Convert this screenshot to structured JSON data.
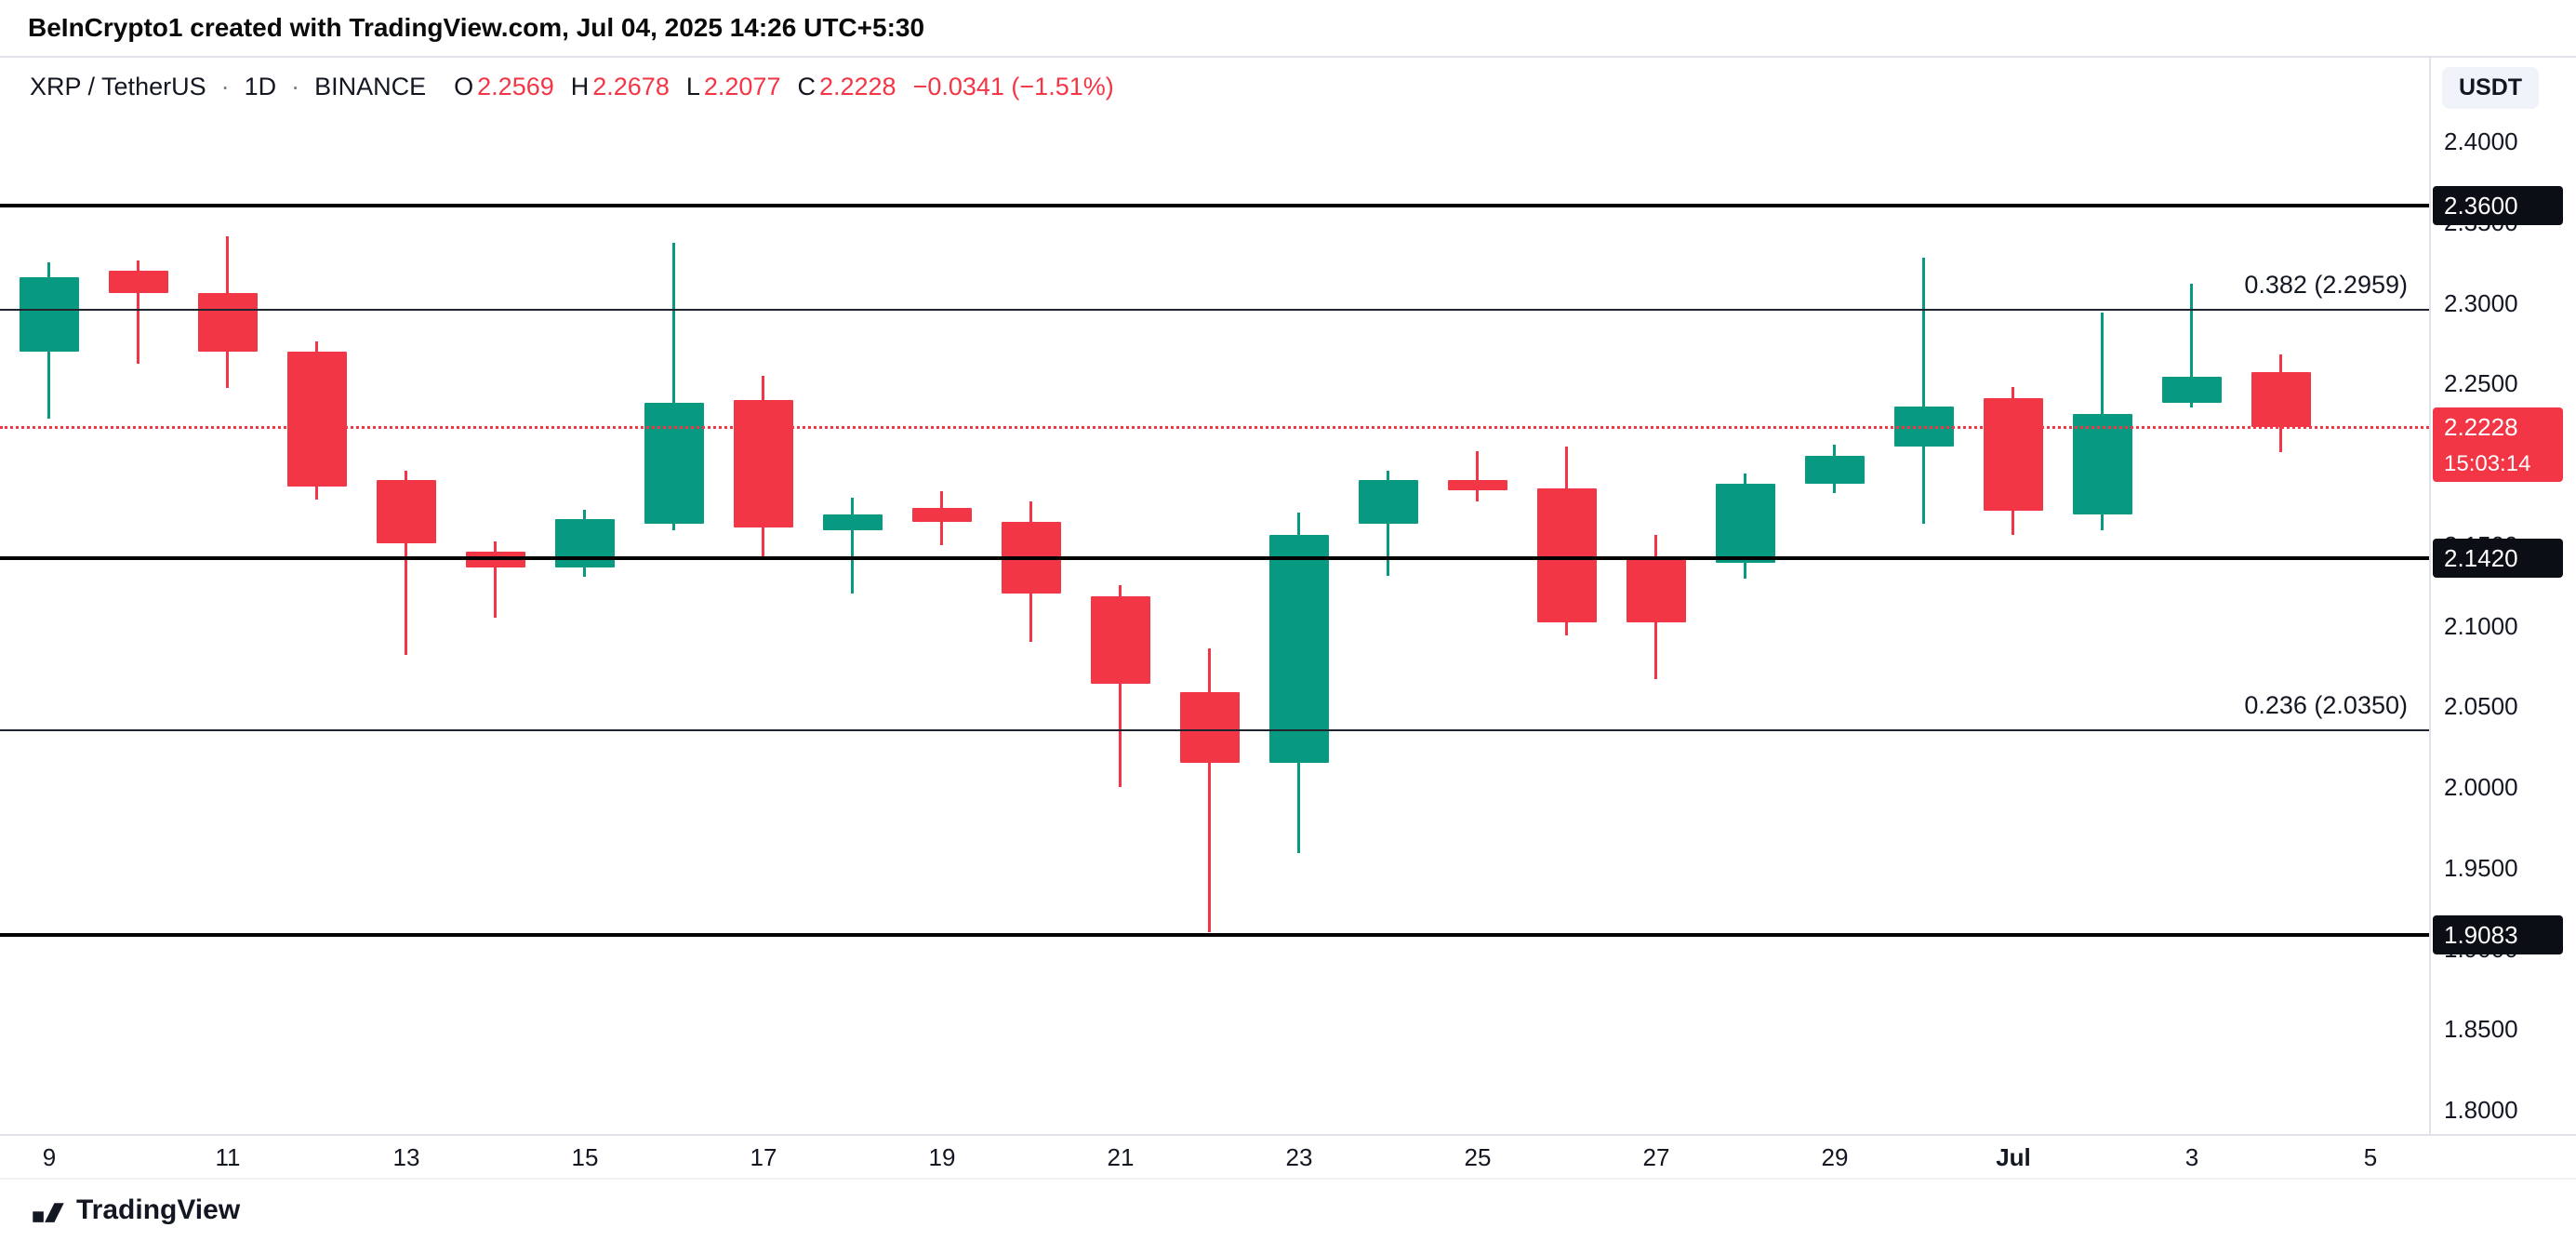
{
  "attribution": {
    "text": "BeInCrypto1 created with TradingView.com, Jul 04, 2025 14:26 UTC+5:30"
  },
  "header": {
    "symbol": "XRP / TetherUS",
    "separator": "·",
    "timeframe": "1D",
    "exchange": "BINANCE",
    "ohlc": {
      "o_label": "O",
      "o": "2.2569",
      "h_label": "H",
      "h": "2.2678",
      "l_label": "L",
      "l": "2.2077",
      "c_label": "C",
      "c": "2.2228",
      "change": "−0.0341 (−1.51%)"
    },
    "currency_button": "USDT"
  },
  "footer": {
    "logo_text": "TradingView"
  },
  "chart_data": {
    "type": "candlestick",
    "title": "XRP / TetherUS · 1D · BINANCE",
    "interval": "1D",
    "exchange": "BINANCE",
    "axis_range_price": [
      1.785,
      2.452
    ],
    "grid": false,
    "colors": {
      "up": "#089981",
      "down": "#f23645",
      "sr_line": "#000000",
      "fib_line": "#20242e",
      "current": "#f23645"
    },
    "candles": [
      {
        "date": "Jun 9",
        "o": 2.27,
        "h": 2.325,
        "l": 2.228,
        "c": 2.316
      },
      {
        "date": "Jun 10",
        "o": 2.32,
        "h": 2.326,
        "l": 2.262,
        "c": 2.306
      },
      {
        "date": "Jun 11",
        "o": 2.306,
        "h": 2.341,
        "l": 2.247,
        "c": 2.27
      },
      {
        "date": "Jun 12",
        "o": 2.27,
        "h": 2.276,
        "l": 2.178,
        "c": 2.186
      },
      {
        "date": "Jun 13",
        "o": 2.19,
        "h": 2.196,
        "l": 2.082,
        "c": 2.151
      },
      {
        "date": "Jun 14",
        "o": 2.146,
        "h": 2.152,
        "l": 2.105,
        "c": 2.136
      },
      {
        "date": "Jun 15",
        "o": 2.136,
        "h": 2.172,
        "l": 2.13,
        "c": 2.166
      },
      {
        "date": "Jun 16",
        "o": 2.163,
        "h": 2.337,
        "l": 2.159,
        "c": 2.238
      },
      {
        "date": "Jun 17",
        "o": 2.24,
        "h": 2.255,
        "l": 2.141,
        "c": 2.161
      },
      {
        "date": "Jun 18",
        "o": 2.159,
        "h": 2.179,
        "l": 2.12,
        "c": 2.169
      },
      {
        "date": "Jun 19",
        "o": 2.173,
        "h": 2.183,
        "l": 2.15,
        "c": 2.164
      },
      {
        "date": "Jun 20",
        "o": 2.164,
        "h": 2.177,
        "l": 2.09,
        "c": 2.12
      },
      {
        "date": "Jun 21",
        "o": 2.118,
        "h": 2.125,
        "l": 2.0,
        "c": 2.064
      },
      {
        "date": "Jun 22",
        "o": 2.059,
        "h": 2.086,
        "l": 1.91,
        "c": 2.015
      },
      {
        "date": "Jun 23",
        "o": 2.015,
        "h": 2.17,
        "l": 1.959,
        "c": 2.156
      },
      {
        "date": "Jun 24",
        "o": 2.163,
        "h": 2.196,
        "l": 2.131,
        "c": 2.19
      },
      {
        "date": "Jun 25",
        "o": 2.19,
        "h": 2.208,
        "l": 2.177,
        "c": 2.184
      },
      {
        "date": "Jun 26",
        "o": 2.185,
        "h": 2.211,
        "l": 2.094,
        "c": 2.102
      },
      {
        "date": "Jun 27",
        "o": 2.141,
        "h": 2.156,
        "l": 2.067,
        "c": 2.102
      },
      {
        "date": "Jun 28",
        "o": 2.139,
        "h": 2.194,
        "l": 2.129,
        "c": 2.188
      },
      {
        "date": "Jun 29",
        "o": 2.188,
        "h": 2.212,
        "l": 2.182,
        "c": 2.205
      },
      {
        "date": "Jun 30",
        "o": 2.211,
        "h": 2.328,
        "l": 2.163,
        "c": 2.236
      },
      {
        "date": "Jul 1",
        "o": 2.241,
        "h": 2.248,
        "l": 2.156,
        "c": 2.171
      },
      {
        "date": "Jul 2",
        "o": 2.169,
        "h": 2.294,
        "l": 2.159,
        "c": 2.231
      },
      {
        "date": "Jul 3",
        "o": 2.238,
        "h": 2.312,
        "l": 2.235,
        "c": 2.254
      },
      {
        "date": "Jul 4",
        "o": 2.2569,
        "h": 2.2678,
        "l": 2.2077,
        "c": 2.2228
      }
    ],
    "sr_levels": [
      {
        "price": 2.36,
        "label": "2.3600"
      },
      {
        "price": 2.142,
        "label": "2.1420"
      },
      {
        "price": 1.9083,
        "label": "1.9083"
      }
    ],
    "fib_levels": [
      {
        "ratio": "0.382",
        "price": 2.2959,
        "label": "0.382 (2.2959)"
      },
      {
        "ratio": "0.236",
        "price": 2.035,
        "label": "0.236 (2.0350)"
      }
    ],
    "current_price": {
      "value": 2.2228,
      "label": "2.2228",
      "countdown": "15:03:14"
    },
    "price_axis": {
      "ticks": [
        {
          "label": "2.4000",
          "value": 2.4
        },
        {
          "label": "2.3500",
          "value": 2.35
        },
        {
          "label": "2.3000",
          "value": 2.3
        },
        {
          "label": "2.2500",
          "value": 2.25
        },
        {
          "label": "2.2000",
          "value": 2.2
        },
        {
          "label": "2.1500",
          "value": 2.15
        },
        {
          "label": "2.1000",
          "value": 2.1
        },
        {
          "label": "2.0500",
          "value": 2.05
        },
        {
          "label": "2.0000",
          "value": 2.0
        },
        {
          "label": "1.9500",
          "value": 1.95
        },
        {
          "label": "1.9000",
          "value": 1.9
        },
        {
          "label": "1.8500",
          "value": 1.85
        },
        {
          "label": "1.8000",
          "value": 1.8
        }
      ]
    },
    "time_ticks": [
      {
        "index": 0,
        "label": "9"
      },
      {
        "index": 2,
        "label": "11"
      },
      {
        "index": 4,
        "label": "13"
      },
      {
        "index": 6,
        "label": "15"
      },
      {
        "index": 8,
        "label": "17"
      },
      {
        "index": 10,
        "label": "19"
      },
      {
        "index": 12,
        "label": "21"
      },
      {
        "index": 14,
        "label": "23"
      },
      {
        "index": 16,
        "label": "25"
      },
      {
        "index": 18,
        "label": "27"
      },
      {
        "index": 20,
        "label": "29"
      },
      {
        "index": 22,
        "label": "Jul",
        "bold": true
      },
      {
        "index": 24,
        "label": "3"
      },
      {
        "index": 26,
        "label": "5"
      }
    ]
  }
}
